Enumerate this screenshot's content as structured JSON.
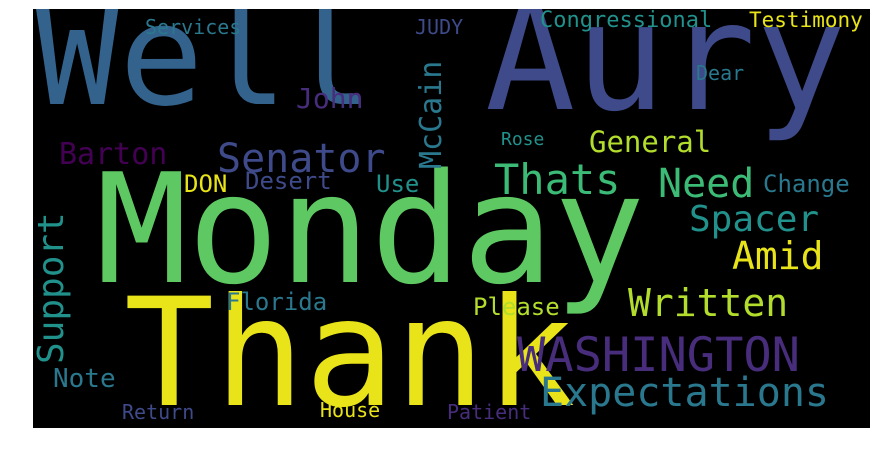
{
  "palette": {
    "background": "#000000",
    "yellow": "#e8e419",
    "yellow_green": "#b2dd2c",
    "green": "#5ec962",
    "light_green": "#3bbb75",
    "teal": "#21918c",
    "teal_blue": "#2a788e",
    "blue": "#33638d",
    "indigo": "#3e4a89",
    "purple": "#472d7b",
    "dark_purple": "#440154"
  },
  "words": {
    "well": "Well",
    "aury": "Aury",
    "monday": "Monday",
    "thank": "Thank",
    "washington": "WASHINGTON",
    "senator": "Senator",
    "barton": "Barton",
    "john": "John",
    "mccain": "McCain",
    "services": "Services",
    "judy": "JUDY",
    "congressional": "Congressional",
    "testimony": "Testimony",
    "dear": "Dear",
    "rose": "Rose",
    "general": "General",
    "thats": "Thats",
    "need": "Need",
    "change": "Change",
    "don": "DON",
    "desert": "Desert",
    "use": "Use",
    "spacer": "Spacer",
    "amid": "Amid",
    "support": "Support",
    "written": "Written",
    "florida": "Florida",
    "please": "Please",
    "note": "Note",
    "expectations": "Expectations",
    "return": "Return",
    "house": "House",
    "patient": "Patient"
  }
}
